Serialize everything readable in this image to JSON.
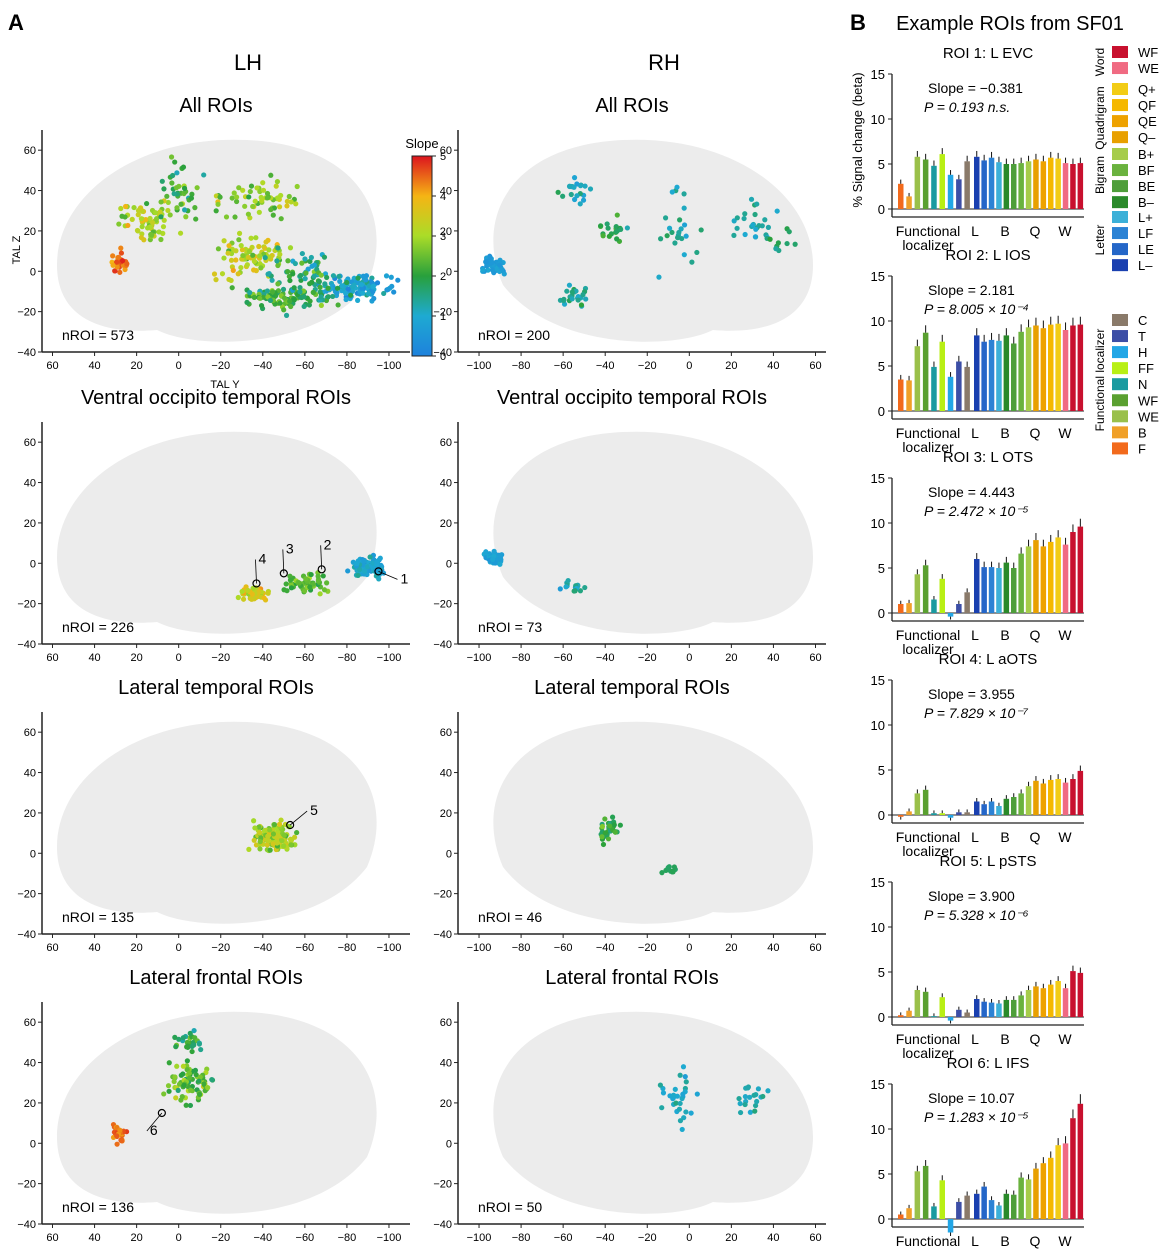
{
  "panel_labels": {
    "a": "A",
    "b": "B"
  },
  "hemispheres": {
    "lh": "LH",
    "rh": "RH"
  },
  "colorbar": {
    "title": "Slope",
    "ticks": [
      "0",
      "1",
      "2",
      "3",
      "4",
      "5"
    ]
  },
  "axis_titles": {
    "x": "TAL Y",
    "y": "TAL Z"
  },
  "panel_b_title": "Example ROIs from SF01",
  "bar_ylabel": "% Signal change (beta)",
  "bar_x_groups": [
    "Functional\nlocalizer",
    "L",
    "B",
    "Q",
    "W"
  ],
  "colors": {
    "WF": "#c8102e",
    "WE": "#f06a82",
    "Q+": "#f2cc16",
    "QF": "#f5b800",
    "QE": "#eea200",
    "Q-": "#e8a000",
    "B+": "#a6cc4a",
    "BF": "#6ab23e",
    "BE": "#4e9e3a",
    "B-": "#2a8a2a",
    "L+": "#3cb0d8",
    "LF": "#2c82d4",
    "LE": "#2466c8",
    "L-": "#1a40b0",
    "C": "#8a7a6a",
    "T": "#3c4ea6",
    "H": "#22a6e6",
    "FF": "#b8ef14",
    "N": "#1a9aa0",
    "LWF": "#5aa030",
    "LWE": "#9ac04a",
    "LB": "#f0a028",
    "LF2": "#f26a1c"
  },
  "legend": {
    "word_items": [
      "WF",
      "WE"
    ],
    "quad_items": [
      "Q+",
      "QF",
      "QE",
      "Q–"
    ],
    "bigram_items": [
      "B+",
      "BF",
      "BE",
      "B–"
    ],
    "letter_items": [
      "L+",
      "LF",
      "LE",
      "L–"
    ],
    "loc_items": [
      "C",
      "T",
      "H",
      "FF",
      "N",
      "WF",
      "WE",
      "B",
      "F"
    ],
    "groups": {
      "word": "Word",
      "quad": "Quadrigram",
      "bigram": "Bigram",
      "letter": "Letter",
      "loc": "Functional localizer"
    }
  },
  "chart_data": [
    {
      "type": "scatter",
      "id": "lh-all",
      "title": "All ROIs",
      "nroi": "nROI = 573",
      "x_ticks": [
        "60",
        "40",
        "20",
        "0",
        "−20",
        "−40",
        "−60",
        "−80",
        "−100"
      ],
      "y_ticks": [
        "60",
        "40",
        "20",
        "0",
        "−20",
        "−40"
      ],
      "xlim": [
        65,
        -110
      ],
      "ylim": [
        -40,
        70
      ]
    },
    {
      "type": "scatter",
      "id": "rh-all",
      "title": "All ROIs",
      "nroi": "nROI = 200",
      "x_ticks": [
        "−100",
        "−80",
        "−60",
        "−40",
        "−20",
        "0",
        "20",
        "40",
        "60"
      ],
      "y_ticks": [
        "60",
        "40",
        "20",
        "0",
        "−20",
        "−40"
      ],
      "xlim": [
        -110,
        65
      ],
      "ylim": [
        -40,
        70
      ]
    },
    {
      "type": "scatter",
      "id": "lh-vot",
      "title": "Ventral occipito temporal ROIs",
      "nroi": "nROI = 226",
      "x_ticks": [
        "60",
        "40",
        "20",
        "0",
        "−20",
        "−40",
        "−60",
        "−80",
        "−100"
      ],
      "y_ticks": [
        "60",
        "40",
        "20",
        "0",
        "−20",
        "−40"
      ],
      "xlim": [
        65,
        -110
      ],
      "ylim": [
        -40,
        70
      ],
      "callouts": [
        {
          "label": "1",
          "x": -95,
          "y": -4
        },
        {
          "label": "2",
          "x": -68,
          "y": -3
        },
        {
          "label": "3",
          "x": -50,
          "y": -5
        },
        {
          "label": "4",
          "x": -37,
          "y": -10
        }
      ]
    },
    {
      "type": "scatter",
      "id": "rh-vot",
      "title": "Ventral occipito temporal ROIs",
      "nroi": "nROI = 73",
      "x_ticks": [
        "−100",
        "−80",
        "−60",
        "−40",
        "−20",
        "0",
        "20",
        "40",
        "60"
      ],
      "y_ticks": [
        "60",
        "40",
        "20",
        "0",
        "−20",
        "−40"
      ],
      "xlim": [
        -110,
        65
      ],
      "ylim": [
        -40,
        70
      ]
    },
    {
      "type": "scatter",
      "id": "lh-lt",
      "title": "Lateral temporal ROIs",
      "nroi": "nROI = 135",
      "x_ticks": [
        "60",
        "40",
        "20",
        "0",
        "−20",
        "−40",
        "−60",
        "−80",
        "−100"
      ],
      "y_ticks": [
        "60",
        "40",
        "20",
        "0",
        "−20",
        "−40"
      ],
      "xlim": [
        65,
        -110
      ],
      "ylim": [
        -40,
        70
      ],
      "callouts": [
        {
          "label": "5",
          "x": -53,
          "y": 14
        }
      ]
    },
    {
      "type": "scatter",
      "id": "rh-lt",
      "title": "Lateral temporal ROIs",
      "nroi": "nROI = 46",
      "x_ticks": [
        "−100",
        "−80",
        "−60",
        "−40",
        "−20",
        "0",
        "20",
        "40",
        "60"
      ],
      "y_ticks": [
        "60",
        "40",
        "20",
        "0",
        "−20",
        "−40"
      ],
      "xlim": [
        -110,
        65
      ],
      "ylim": [
        -40,
        70
      ]
    },
    {
      "type": "scatter",
      "id": "lh-lf",
      "title": "Lateral frontal ROIs",
      "nroi": "nROI = 136",
      "x_ticks": [
        "60",
        "40",
        "20",
        "0",
        "−20",
        "−40",
        "−60",
        "−80",
        "−100"
      ],
      "y_ticks": [
        "60",
        "40",
        "20",
        "0",
        "−20",
        "−40"
      ],
      "xlim": [
        65,
        -110
      ],
      "ylim": [
        -40,
        70
      ],
      "callouts": [
        {
          "label": "6",
          "x": 8,
          "y": 15
        }
      ]
    },
    {
      "type": "scatter",
      "id": "rh-lf",
      "title": "Lateral frontal ROIs",
      "nroi": "nROI = 50",
      "x_ticks": [
        "−100",
        "−80",
        "−60",
        "−40",
        "−20",
        "0",
        "20",
        "40",
        "60"
      ],
      "y_ticks": [
        "60",
        "40",
        "20",
        "0",
        "−20",
        "−40"
      ],
      "xlim": [
        -110,
        65
      ],
      "ylim": [
        -40,
        70
      ]
    },
    {
      "type": "bar",
      "id": "roi1",
      "title": "ROI 1: L EVC",
      "slope": "Slope = −0.381",
      "p": "P = 0.193 n.s.",
      "ylim": [
        0,
        15
      ],
      "y_ticks": [
        "0",
        "5",
        "10",
        "15"
      ],
      "values": [
        2.8,
        1.4,
        5.8,
        5.5,
        4.8,
        6.1,
        3.8,
        3.3,
        5.3,
        5.8,
        5.4,
        5.7,
        5.2,
        5.0,
        5.0,
        5.1,
        5.3,
        5.5,
        5.3,
        5.7,
        5.6,
        5.1,
        5.0,
        5.1
      ]
    },
    {
      "type": "bar",
      "id": "roi2",
      "title": "ROI 2: L IOS",
      "slope": "Slope = 2.181",
      "p": "P = 8.005 × 10⁻⁴",
      "ylim": [
        0,
        15
      ],
      "y_ticks": [
        "0",
        "5",
        "10",
        "15"
      ],
      "values": [
        3.5,
        3.4,
        7.2,
        8.7,
        4.9,
        7.7,
        3.8,
        5.5,
        4.9,
        8.4,
        7.7,
        7.9,
        7.8,
        8.4,
        7.5,
        8.8,
        9.3,
        9.5,
        9.2,
        9.6,
        9.7,
        9.0,
        9.5,
        9.6
      ]
    },
    {
      "type": "bar",
      "id": "roi3",
      "title": "ROI 3: L OTS",
      "slope": "Slope = 4.443",
      "p": "P = 2.472 × 10⁻⁵",
      "ylim": [
        0,
        15
      ],
      "y_ticks": [
        "0",
        "5",
        "10",
        "15"
      ],
      "values": [
        1.0,
        1.1,
        4.3,
        5.3,
        1.5,
        3.8,
        -0.4,
        1.0,
        2.3,
        6.0,
        5.1,
        5.1,
        5.0,
        5.6,
        5.0,
        6.6,
        7.4,
        8.1,
        7.4,
        7.9,
        8.4,
        7.6,
        9.0,
        9.6
      ]
    },
    {
      "type": "bar",
      "id": "roi4",
      "title": "ROI 4: L aOTS",
      "slope": "Slope = 3.955",
      "p": "P = 7.829 × 10⁻⁷",
      "ylim": [
        0,
        15
      ],
      "y_ticks": [
        "0",
        "5",
        "10",
        "15"
      ],
      "values": [
        -0.2,
        0.4,
        2.4,
        2.8,
        0.2,
        0.2,
        -0.3,
        0.3,
        0.3,
        1.5,
        1.2,
        1.5,
        1.0,
        1.8,
        2.0,
        2.4,
        3.2,
        3.8,
        3.5,
        3.9,
        4.0,
        3.6,
        4.0,
        4.9
      ]
    },
    {
      "type": "bar",
      "id": "roi5",
      "title": "ROI 5: L pSTS",
      "slope": "Slope = 3.900",
      "p": "P = 5.328 × 10⁻⁶",
      "ylim": [
        0,
        15
      ],
      "y_ticks": [
        "0",
        "5",
        "10",
        "15"
      ],
      "values": [
        0.2,
        0.7,
        3.0,
        2.8,
        0.1,
        2.2,
        -0.4,
        0.8,
        0.5,
        2.0,
        1.7,
        1.6,
        1.5,
        1.9,
        1.9,
        2.4,
        3.0,
        3.4,
        3.2,
        3.6,
        4.0,
        3.2,
        5.1,
        4.9
      ]
    },
    {
      "type": "bar",
      "id": "roi6",
      "title": "ROI 6: L IFS",
      "slope": "Slope = 10.07",
      "p": "P = 1.283 × 10⁻⁵",
      "ylim": [
        0,
        15
      ],
      "y_ticks": [
        "0",
        "5",
        "10",
        "15"
      ],
      "values": [
        0.5,
        1.2,
        5.3,
        5.9,
        1.4,
        4.3,
        -1.5,
        1.9,
        2.6,
        2.8,
        3.6,
        2.1,
        1.5,
        2.8,
        2.7,
        4.6,
        4.4,
        5.6,
        6.2,
        6.8,
        8.2,
        8.4,
        11.2,
        12.8
      ]
    }
  ]
}
